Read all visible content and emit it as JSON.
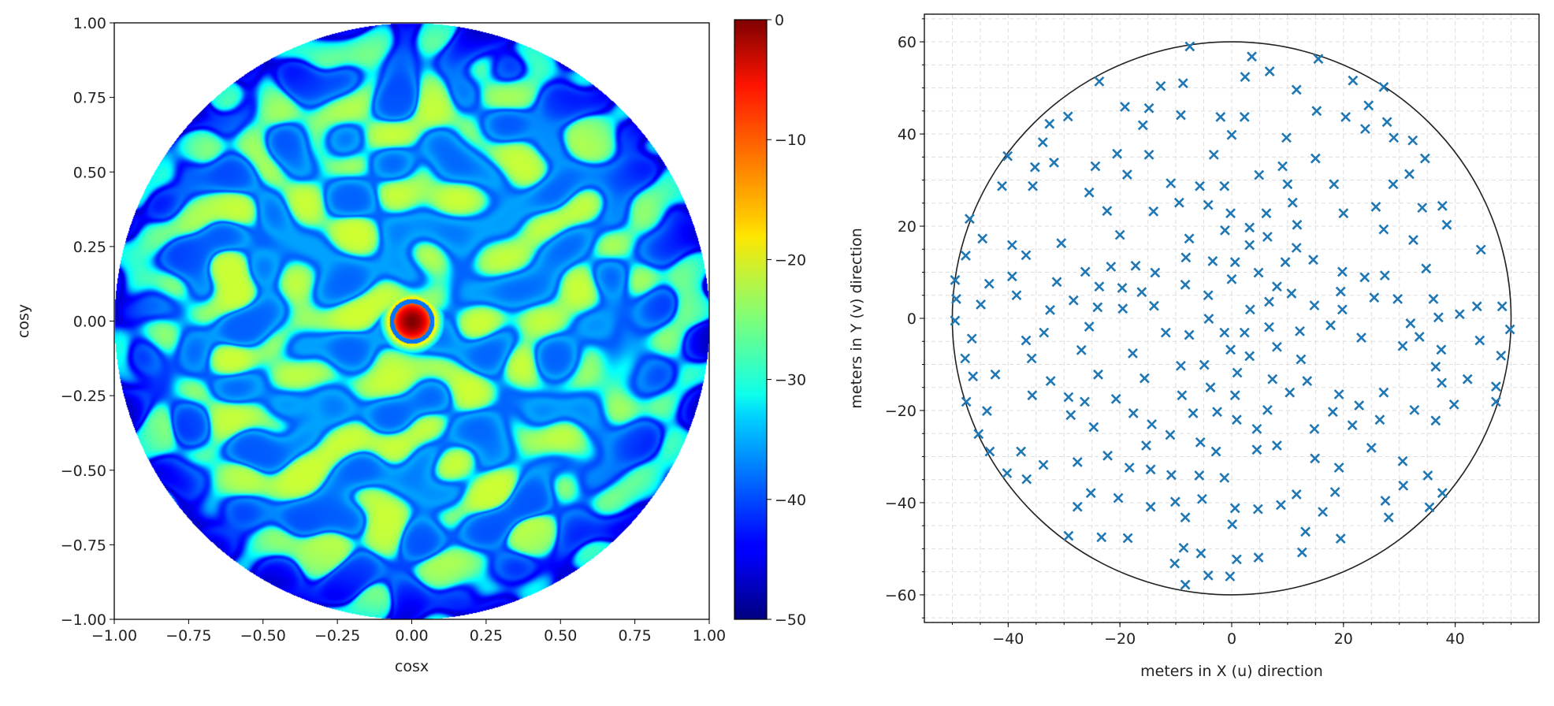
{
  "chart_data": [
    {
      "type": "heatmap",
      "title": "",
      "xlabel": "cosx",
      "ylabel": "cosy",
      "xlim": [
        -1.0,
        1.0
      ],
      "ylim": [
        -1.0,
        1.0
      ],
      "xticks": [
        "−1.00",
        "−0.75",
        "−0.50",
        "−0.25",
        "0.00",
        "0.25",
        "0.50",
        "0.75",
        "1.00"
      ],
      "yticks": [
        "1.00",
        "0.75",
        "0.50",
        "0.25",
        "0.00",
        "−0.25",
        "−0.50",
        "−0.75",
        "−1.00"
      ],
      "colormap": "jet",
      "colorbar": {
        "range": [
          -50,
          0
        ],
        "ticks": [
          "0",
          "−10",
          "−20",
          "−30",
          "−40",
          "−50"
        ]
      },
      "description_values": {
        "main_lobe_center": [
          0.0,
          0.0
        ],
        "main_lobe_peak_db": 0,
        "sidelobe_level_db_approx": -25
      }
    },
    {
      "type": "scatter",
      "title": "",
      "xlabel": "meters in X (u) direction",
      "ylabel": "meters in Y (v) direction",
      "xlim": [
        -55,
        55
      ],
      "ylim": [
        -66,
        66
      ],
      "xticks": [
        "−40",
        "−20",
        "0",
        "20",
        "40"
      ],
      "xtick_values": [
        -40,
        -20,
        0,
        20,
        40
      ],
      "yticks": [
        "−60",
        "−40",
        "−20",
        "0",
        "20",
        "40",
        "60"
      ],
      "ytick_values": [
        -60,
        -40,
        -20,
        0,
        20,
        40,
        60
      ],
      "grid": true,
      "marker": "x",
      "color": "#1f77b4",
      "boundary_ellipse": {
        "center": [
          0,
          0
        ],
        "rx": 50,
        "ry": 60
      },
      "points": [
        [
          -7.5,
          59
        ],
        [
          3.6,
          56.8
        ],
        [
          15.5,
          56.3
        ],
        [
          6.8,
          53.6
        ],
        [
          2.4,
          52.4
        ],
        [
          21.7,
          51.6
        ],
        [
          -23.7,
          51.4
        ],
        [
          -8.7,
          51
        ],
        [
          -12.7,
          50.4
        ],
        [
          27.2,
          50.2
        ],
        [
          11.6,
          49.6
        ],
        [
          -19.1,
          45.9
        ],
        [
          -14.8,
          45.6
        ],
        [
          24.5,
          46.2
        ],
        [
          15.2,
          45
        ],
        [
          -29.3,
          43.8
        ],
        [
          -9.1,
          44.1
        ],
        [
          -2,
          43.7
        ],
        [
          2.3,
          43.7
        ],
        [
          20.4,
          43.7
        ],
        [
          27.8,
          42.6
        ],
        [
          -32.6,
          42.2
        ],
        [
          -15.9,
          41.9
        ],
        [
          23.9,
          41.1
        ],
        [
          0,
          39.8
        ],
        [
          9.8,
          39.2
        ],
        [
          29,
          39.2
        ],
        [
          32.4,
          38.6
        ],
        [
          -33.8,
          38.2
        ],
        [
          -40.1,
          35.2
        ],
        [
          -20.5,
          35.7
        ],
        [
          -14.8,
          35.5
        ],
        [
          -3.2,
          35.5
        ],
        [
          34.6,
          34.7
        ],
        [
          15,
          34.7
        ],
        [
          -31.8,
          33.8
        ],
        [
          -35.2,
          32.8
        ],
        [
          -24.4,
          33
        ],
        [
          9.1,
          33
        ],
        [
          -18.7,
          31.2
        ],
        [
          4.9,
          31.1
        ],
        [
          31.8,
          31.3
        ],
        [
          -41.1,
          28.7
        ],
        [
          -35.6,
          28.7
        ],
        [
          -10.9,
          29.3
        ],
        [
          -5.7,
          28.7
        ],
        [
          -1.3,
          28.7
        ],
        [
          10,
          29.1
        ],
        [
          18.3,
          29.1
        ],
        [
          28.9,
          29.1
        ],
        [
          -25.5,
          27.3
        ],
        [
          -9.4,
          25.1
        ],
        [
          10.9,
          25.1
        ],
        [
          -4.2,
          24.6
        ],
        [
          25.8,
          24.2
        ],
        [
          34.1,
          24
        ],
        [
          37.7,
          24.4
        ],
        [
          -22.3,
          23.3
        ],
        [
          -14,
          23.2
        ],
        [
          -0.2,
          22.8
        ],
        [
          6.2,
          22.8
        ],
        [
          20,
          22.8
        ],
        [
          -46.9,
          21.6
        ],
        [
          27.2,
          19.3
        ],
        [
          3.2,
          19.7
        ],
        [
          -1.2,
          19.1
        ],
        [
          11.7,
          20.3
        ],
        [
          38.5,
          20.3
        ],
        [
          -44.6,
          17.3
        ],
        [
          -30.5,
          16.3
        ],
        [
          -39.3,
          15.9
        ],
        [
          -20,
          18.1
        ],
        [
          -7.6,
          17.3
        ],
        [
          6.4,
          17.7
        ],
        [
          32.5,
          17
        ],
        [
          3.2,
          15.9
        ],
        [
          11.6,
          15.3
        ],
        [
          44.6,
          14.9
        ],
        [
          -47.6,
          13.6
        ],
        [
          -36.8,
          13.7
        ],
        [
          -8.2,
          13.2
        ],
        [
          14.6,
          12.7
        ],
        [
          -3.4,
          12.4
        ],
        [
          0.6,
          12.2
        ],
        [
          9.6,
          12.2
        ],
        [
          -21.6,
          11.2
        ],
        [
          -17.2,
          11.4
        ],
        [
          34.8,
          10.8
        ],
        [
          -26.2,
          10.1
        ],
        [
          -13.7,
          9.9
        ],
        [
          4.8,
          9.9
        ],
        [
          19.8,
          10.1
        ],
        [
          23.8,
          8.9
        ],
        [
          27.4,
          9.3
        ],
        [
          -39.3,
          9.1
        ],
        [
          -49.5,
          8.3
        ],
        [
          0,
          8.5
        ],
        [
          -31.3,
          7.9
        ],
        [
          -43.4,
          7.5
        ],
        [
          -8.3,
          7.3
        ],
        [
          8.1,
          6.9
        ],
        [
          -23.7,
          6.9
        ],
        [
          -19.6,
          6.6
        ],
        [
          -16.1,
          5.7
        ],
        [
          19.5,
          5.8
        ],
        [
          -38.5,
          5
        ],
        [
          -4.2,
          5
        ],
        [
          10.7,
          5.4
        ],
        [
          25.5,
          4.5
        ],
        [
          29.7,
          4.2
        ],
        [
          -49.3,
          4.2
        ],
        [
          36.1,
          4.2
        ],
        [
          -28.3,
          3.9
        ],
        [
          6.7,
          3.6
        ],
        [
          -44.9,
          3
        ],
        [
          14.8,
          2.8
        ],
        [
          43.9,
          2.6
        ],
        [
          48.4,
          2.6
        ],
        [
          -24,
          2.4
        ],
        [
          -19.5,
          2.1
        ],
        [
          -13.9,
          2.7
        ],
        [
          -32.5,
          1.8
        ],
        [
          3.3,
          1.9
        ],
        [
          19.8,
          1.9
        ],
        [
          40.8,
          0.9
        ],
        [
          37,
          0.2
        ],
        [
          -4.1,
          -0.1
        ],
        [
          -49.5,
          -0.5
        ],
        [
          -25.5,
          -1.8
        ],
        [
          6.7,
          -1.9
        ],
        [
          17.7,
          -1.5
        ],
        [
          32,
          -1.1
        ],
        [
          49.8,
          -2.4
        ],
        [
          -33.6,
          -3.1
        ],
        [
          -11.8,
          -3.1
        ],
        [
          -7.6,
          -3.6
        ],
        [
          -1.3,
          -3.1
        ],
        [
          2.3,
          -3.1
        ],
        [
          12.2,
          -2.8
        ],
        [
          33.6,
          -4
        ],
        [
          23.2,
          -4.2
        ],
        [
          -46.5,
          -4.4
        ],
        [
          -36.8,
          -4.8
        ],
        [
          44.4,
          -4.8
        ],
        [
          30.6,
          -6
        ],
        [
          8.1,
          -6.2
        ],
        [
          -0.2,
          -6.8
        ],
        [
          -26.9,
          -6.9
        ],
        [
          37.5,
          -6.8
        ],
        [
          -17.7,
          -7.6
        ],
        [
          3.2,
          -8.2
        ],
        [
          48.2,
          -8.1
        ],
        [
          -47.7,
          -8.7
        ],
        [
          -35.8,
          -8.7
        ],
        [
          12.4,
          -8.9
        ],
        [
          -9.1,
          -10.3
        ],
        [
          -4.9,
          -10.1
        ],
        [
          36.5,
          -10.5
        ],
        [
          1,
          -11.8
        ],
        [
          -46.3,
          -12.6
        ],
        [
          -42.3,
          -12.2
        ],
        [
          -23.9,
          -12.2
        ],
        [
          -15.6,
          -13
        ],
        [
          7.3,
          -13.2
        ],
        [
          13.5,
          -13.6
        ],
        [
          42.2,
          -13.2
        ],
        [
          -32.4,
          -13.6
        ],
        [
          37.6,
          -14
        ],
        [
          -3.8,
          -15
        ],
        [
          47.3,
          -14.8
        ],
        [
          10.4,
          -16.1
        ],
        [
          27.2,
          -16.1
        ],
        [
          19.2,
          -16.5
        ],
        [
          -35.7,
          -16.7
        ],
        [
          -8.9,
          -16.7
        ],
        [
          0.6,
          -16.7
        ],
        [
          -29.2,
          -17.1
        ],
        [
          -20.7,
          -17.5
        ],
        [
          -47.5,
          -18.1
        ],
        [
          -26.3,
          -18.1
        ],
        [
          47.3,
          -18.1
        ],
        [
          22.8,
          -18.9
        ],
        [
          39.8,
          -18.7
        ],
        [
          -43.8,
          -20.1
        ],
        [
          -17.6,
          -20.6
        ],
        [
          -6.9,
          -20.6
        ],
        [
          -2.6,
          -20.3
        ],
        [
          6.4,
          -19.9
        ],
        [
          18.1,
          -20.3
        ],
        [
          32.7,
          -19.9
        ],
        [
          -28.8,
          -21
        ],
        [
          0.9,
          -22
        ],
        [
          26.5,
          -22
        ],
        [
          36.5,
          -22.2
        ],
        [
          -14.3,
          -23
        ],
        [
          21.6,
          -23.2
        ],
        [
          -24.7,
          -23.6
        ],
        [
          4.5,
          -24
        ],
        [
          14.8,
          -24
        ],
        [
          -45.3,
          -25.1
        ],
        [
          -11,
          -25.3
        ],
        [
          -5.6,
          -26.9
        ],
        [
          -15.3,
          -27.6
        ],
        [
          8.1,
          -27.6
        ],
        [
          4.5,
          -28.5
        ],
        [
          25,
          -28.1
        ],
        [
          -43.3,
          -28.9
        ],
        [
          -37.7,
          -28.9
        ],
        [
          -2.8,
          -28.9
        ],
        [
          -22.2,
          -29.8
        ],
        [
          14.9,
          -30.4
        ],
        [
          30.6,
          -31
        ],
        [
          -27.6,
          -31.2
        ],
        [
          -33.7,
          -31.8
        ],
        [
          -18.3,
          -32.4
        ],
        [
          -14.5,
          -32.8
        ],
        [
          19.2,
          -32.4
        ],
        [
          -40.2,
          -33.6
        ],
        [
          -10.8,
          -34
        ],
        [
          -5.8,
          -34.1
        ],
        [
          35.1,
          -34.1
        ],
        [
          -36.7,
          -34.9
        ],
        [
          -1.3,
          -34.6
        ],
        [
          30.7,
          -36.3
        ],
        [
          -25.2,
          -37.9
        ],
        [
          18.5,
          -37.7
        ],
        [
          11.6,
          -38.2
        ],
        [
          37.7,
          -37.9
        ],
        [
          -20.3,
          -39
        ],
        [
          -5.3,
          -39.2
        ],
        [
          -10.1,
          -39.8
        ],
        [
          27.5,
          -39.6
        ],
        [
          8.8,
          -40.5
        ],
        [
          -27.6,
          -40.9
        ],
        [
          -14.5,
          -40.9
        ],
        [
          0.6,
          -41.2
        ],
        [
          4.7,
          -41.4
        ],
        [
          35.4,
          -41
        ],
        [
          16.3,
          -42
        ],
        [
          -8.3,
          -43.2
        ],
        [
          28.1,
          -43.2
        ],
        [
          0.1,
          -44.7
        ],
        [
          13.2,
          -46.3
        ],
        [
          -29.2,
          -47.2
        ],
        [
          -23.3,
          -47.5
        ],
        [
          -18.6,
          -47.7
        ],
        [
          19.5,
          -47.8
        ],
        [
          -8.6,
          -49.8
        ],
        [
          -5.5,
          -51
        ],
        [
          12.6,
          -50.8
        ],
        [
          4.8,
          -51.9
        ],
        [
          0.9,
          -52.3
        ],
        [
          -10.2,
          -53.2
        ],
        [
          -4.2,
          -55.8
        ],
        [
          -0.3,
          -56
        ],
        [
          -8.3,
          -57.8
        ]
      ]
    }
  ]
}
